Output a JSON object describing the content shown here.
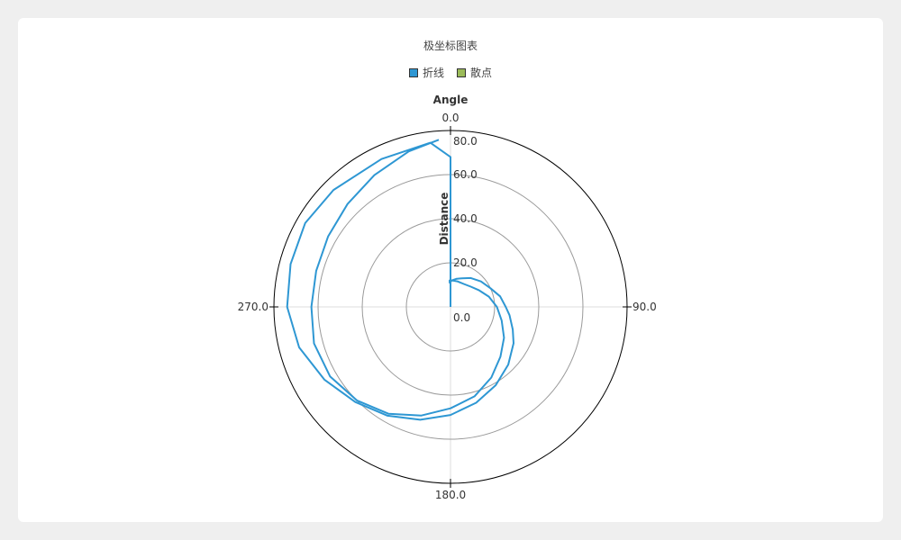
{
  "chart_data": {
    "type": "line",
    "polar": true,
    "title": "极坐标图表",
    "legend_position": "top-center",
    "series": [
      {
        "name": "折线",
        "color": "#2e97d3"
      },
      {
        "name": "散点",
        "color": "#9bbb59"
      }
    ],
    "angle_axis": {
      "title": "Angle",
      "range": [
        0,
        360
      ],
      "labels": [
        "0.0",
        "90.0",
        "180.0",
        "270.0"
      ],
      "label_values": [
        0,
        90,
        180,
        270
      ],
      "direction": "clockwise",
      "zero_at": "top"
    },
    "radius_axis": {
      "title": "Distance",
      "range": [
        0,
        80
      ],
      "labels": [
        "0.0",
        "20.0",
        "40.0",
        "60.0",
        "80.0"
      ],
      "label_values": [
        0,
        20,
        40,
        60,
        80
      ]
    },
    "grid": true,
    "line_series": {
      "name": "折线",
      "points": [
        [
          0,
          0
        ],
        [
          0,
          68
        ],
        [
          -7,
          75
        ],
        [
          -25,
          74
        ],
        [
          -45,
          75
        ],
        [
          -60,
          76
        ],
        [
          -75,
          75
        ],
        [
          -90,
          74
        ],
        [
          -105,
          71
        ],
        [
          -120,
          66
        ],
        [
          -135,
          61
        ],
        [
          -150,
          57
        ],
        [
          -165,
          53
        ],
        [
          -180,
          49
        ],
        [
          -195,
          45
        ],
        [
          -210,
          41
        ],
        [
          -225,
          37
        ],
        [
          -240,
          33
        ],
        [
          -250,
          30
        ],
        [
          -262,
          27
        ],
        [
          -270,
          25
        ],
        [
          -282,
          23
        ],
        [
          -295,
          20
        ],
        [
          -310,
          18
        ],
        [
          -325,
          16
        ],
        [
          -338,
          14
        ],
        [
          -348,
          13
        ],
        [
          -357,
          12
        ],
        [
          -2,
          11
        ],
        [
          -2,
          12
        ],
        [
          4,
          12
        ],
        [
          15,
          12
        ],
        [
          30,
          12
        ],
        [
          45,
          13
        ],
        [
          60,
          15
        ],
        [
          75,
          18
        ],
        [
          90,
          21
        ],
        [
          105,
          24
        ],
        [
          120,
          28
        ],
        [
          135,
          32
        ],
        [
          150,
          37
        ],
        [
          165,
          42
        ],
        [
          180,
          46
        ],
        [
          195,
          51
        ],
        [
          210,
          56
        ],
        [
          225,
          60
        ],
        [
          240,
          63
        ],
        [
          255,
          64
        ],
        [
          270,
          63
        ],
        [
          285,
          63
        ],
        [
          300,
          64
        ],
        [
          315,
          66
        ],
        [
          330,
          69
        ],
        [
          345,
          73
        ],
        [
          356,
          76
        ]
      ]
    }
  }
}
